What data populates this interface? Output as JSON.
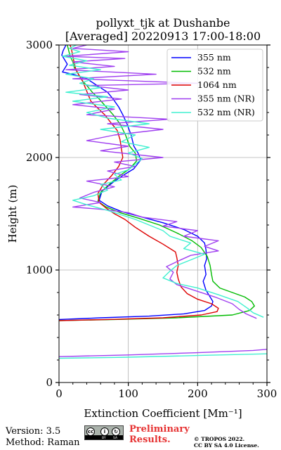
{
  "chart_data": {
    "type": "line",
    "title": "pollyxt_tjk at Dushanbe",
    "subtitle": "[Averaged] 20220913 17:00-18:00",
    "xlabel": "Extinction Coefficient [Mm⁻¹]",
    "ylabel": "Height (m)",
    "xlim": [
      0,
      300
    ],
    "ylim": [
      0,
      3000
    ],
    "xticks": [
      "0",
      "100",
      "200",
      "300"
    ],
    "yticks": [
      "0",
      "1000",
      "2000",
      "3000"
    ],
    "grid": true,
    "legend_position": "top-right",
    "series": [
      {
        "name": "355 nm",
        "color": "#0000ff",
        "points": [
          [
            0,
            560
          ],
          [
            60,
            575
          ],
          [
            130,
            590
          ],
          [
            180,
            610
          ],
          [
            210,
            640
          ],
          [
            220,
            680
          ],
          [
            222,
            720
          ],
          [
            218,
            760
          ],
          [
            212,
            820
          ],
          [
            208,
            900
          ],
          [
            212,
            960
          ],
          [
            210,
            1040
          ],
          [
            213,
            1100
          ],
          [
            212,
            1180
          ],
          [
            210,
            1240
          ],
          [
            200,
            1300
          ],
          [
            180,
            1360
          ],
          [
            150,
            1420
          ],
          [
            120,
            1470
          ],
          [
            90,
            1520
          ],
          [
            70,
            1570
          ],
          [
            58,
            1620
          ],
          [
            62,
            1700
          ],
          [
            78,
            1780
          ],
          [
            92,
            1840
          ],
          [
            108,
            1900
          ],
          [
            118,
            1980
          ],
          [
            114,
            2040
          ],
          [
            108,
            2100
          ],
          [
            104,
            2200
          ],
          [
            98,
            2300
          ],
          [
            92,
            2380
          ],
          [
            86,
            2450
          ],
          [
            78,
            2520
          ],
          [
            70,
            2580
          ],
          [
            60,
            2620
          ],
          [
            50,
            2660
          ],
          [
            40,
            2700
          ],
          [
            20,
            2740
          ],
          [
            5,
            2760
          ],
          [
            8,
            2790
          ],
          [
            12,
            2830
          ],
          [
            8,
            2870
          ],
          [
            4,
            2910
          ],
          [
            6,
            2950
          ],
          [
            10,
            3000
          ]
        ]
      },
      {
        "name": "532 nm",
        "color": "#00bb00",
        "points": [
          [
            0,
            550
          ],
          [
            80,
            560
          ],
          [
            170,
            575
          ],
          [
            250,
            600
          ],
          [
            275,
            640
          ],
          [
            282,
            680
          ],
          [
            278,
            720
          ],
          [
            268,
            760
          ],
          [
            250,
            800
          ],
          [
            232,
            840
          ],
          [
            222,
            900
          ],
          [
            220,
            960
          ],
          [
            218,
            1040
          ],
          [
            214,
            1120
          ],
          [
            205,
            1200
          ],
          [
            192,
            1260
          ],
          [
            170,
            1330
          ],
          [
            145,
            1400
          ],
          [
            115,
            1460
          ],
          [
            88,
            1510
          ],
          [
            68,
            1560
          ],
          [
            56,
            1610
          ],
          [
            60,
            1690
          ],
          [
            74,
            1770
          ],
          [
            88,
            1840
          ],
          [
            102,
            1900
          ],
          [
            112,
            1970
          ],
          [
            110,
            2040
          ],
          [
            102,
            2100
          ],
          [
            96,
            2200
          ],
          [
            88,
            2300
          ],
          [
            78,
            2380
          ],
          [
            68,
            2450
          ],
          [
            58,
            2520
          ],
          [
            48,
            2580
          ],
          [
            40,
            2640
          ],
          [
            34,
            2680
          ],
          [
            30,
            2720
          ],
          [
            26,
            2760
          ],
          [
            22,
            2800
          ],
          [
            20,
            2850
          ],
          [
            16,
            2900
          ],
          [
            14,
            2950
          ],
          [
            12,
            3000
          ]
        ]
      },
      {
        "name": "1064 nm",
        "color": "#dd0000",
        "points": [
          [
            0,
            550
          ],
          [
            70,
            560
          ],
          [
            150,
            575
          ],
          [
            205,
            600
          ],
          [
            228,
            630
          ],
          [
            230,
            660
          ],
          [
            220,
            700
          ],
          [
            200,
            740
          ],
          [
            185,
            790
          ],
          [
            176,
            850
          ],
          [
            172,
            920
          ],
          [
            170,
            980
          ],
          [
            172,
            1040
          ],
          [
            170,
            1110
          ],
          [
            168,
            1160
          ],
          [
            150,
            1230
          ],
          [
            130,
            1300
          ],
          [
            110,
            1380
          ],
          [
            95,
            1450
          ],
          [
            80,
            1500
          ],
          [
            68,
            1550
          ],
          [
            58,
            1600
          ],
          [
            56,
            1680
          ],
          [
            64,
            1760
          ],
          [
            76,
            1840
          ],
          [
            86,
            1920
          ],
          [
            92,
            2000
          ],
          [
            90,
            2080
          ],
          [
            88,
            2160
          ],
          [
            84,
            2240
          ],
          [
            76,
            2300
          ],
          [
            66,
            2380
          ],
          [
            54,
            2450
          ],
          [
            46,
            2500
          ],
          [
            42,
            2560
          ],
          [
            38,
            2620
          ],
          [
            34,
            2680
          ],
          [
            28,
            2740
          ],
          [
            24,
            2790
          ],
          [
            22,
            2840
          ],
          [
            20,
            2900
          ],
          [
            18,
            2960
          ],
          [
            16,
            3000
          ]
        ]
      },
      {
        "name": "355 nm (NR)",
        "color": "#a040f0",
        "points": [
          [
            0,
            230
          ],
          [
            100,
            245
          ],
          [
            200,
            265
          ],
          [
            280,
            285
          ],
          [
            300,
            295
          ],
          [
            null,
            null
          ],
          [
            285,
            570
          ],
          [
            270,
            610
          ],
          [
            260,
            650
          ],
          [
            250,
            700
          ],
          [
            225,
            760
          ],
          [
            195,
            820
          ],
          [
            170,
            870
          ],
          [
            160,
            920
          ],
          [
            165,
            980
          ],
          [
            155,
            1030
          ],
          [
            172,
            1080
          ],
          [
            190,
            1130
          ],
          [
            230,
            1170
          ],
          [
            210,
            1210
          ],
          [
            230,
            1260
          ],
          [
            180,
            1300
          ],
          [
            200,
            1350
          ],
          [
            150,
            1390
          ],
          [
            170,
            1430
          ],
          [
            120,
            1470
          ],
          [
            100,
            1510
          ],
          [
            60,
            1540
          ],
          [
            20,
            1560
          ],
          [
            60,
            1600
          ],
          [
            30,
            1640
          ],
          [
            50,
            1690
          ],
          [
            80,
            1740
          ],
          [
            40,
            1790
          ],
          [
            100,
            1830
          ],
          [
            70,
            1880
          ],
          [
            110,
            1920
          ],
          [
            80,
            1960
          ],
          [
            150,
            2000
          ],
          [
            60,
            2060
          ],
          [
            100,
            2100
          ],
          [
            40,
            2150
          ],
          [
            80,
            2200
          ],
          [
            150,
            2250
          ],
          [
            70,
            2300
          ],
          [
            160,
            2340
          ],
          [
            40,
            2380
          ],
          [
            80,
            2430
          ],
          [
            20,
            2470
          ],
          [
            90,
            2520
          ],
          [
            30,
            2560
          ],
          [
            100,
            2600
          ],
          [
            40,
            2640
          ],
          [
            200,
            2660
          ],
          [
            20,
            2700
          ],
          [
            140,
            2740
          ],
          [
            10,
            2780
          ],
          [
            80,
            2810
          ],
          [
            20,
            2850
          ],
          [
            95,
            2880
          ],
          [
            10,
            2900
          ],
          [
            100,
            2940
          ],
          [
            20,
            2970
          ],
          [
            40,
            3000
          ]
        ]
      },
      {
        "name": "532 nm (NR)",
        "color": "#40f0d0",
        "points": [
          [
            0,
            215
          ],
          [
            100,
            225
          ],
          [
            200,
            240
          ],
          [
            300,
            255
          ],
          [
            null,
            null
          ],
          [
            295,
            580
          ],
          [
            280,
            620
          ],
          [
            272,
            660
          ],
          [
            258,
            720
          ],
          [
            230,
            780
          ],
          [
            200,
            840
          ],
          [
            170,
            880
          ],
          [
            150,
            930
          ],
          [
            160,
            990
          ],
          [
            170,
            1040
          ],
          [
            190,
            1090
          ],
          [
            210,
            1140
          ],
          [
            180,
            1190
          ],
          [
            190,
            1240
          ],
          [
            160,
            1300
          ],
          [
            150,
            1350
          ],
          [
            130,
            1400
          ],
          [
            110,
            1450
          ],
          [
            90,
            1490
          ],
          [
            70,
            1530
          ],
          [
            40,
            1580
          ],
          [
            20,
            1620
          ],
          [
            50,
            1660
          ],
          [
            70,
            1710
          ],
          [
            60,
            1760
          ],
          [
            90,
            1800
          ],
          [
            80,
            1850
          ],
          [
            100,
            1890
          ],
          [
            110,
            1940
          ],
          [
            120,
            1990
          ],
          [
            100,
            2040
          ],
          [
            130,
            2090
          ],
          [
            90,
            2140
          ],
          [
            110,
            2200
          ],
          [
            60,
            2250
          ],
          [
            130,
            2300
          ],
          [
            70,
            2350
          ],
          [
            40,
            2400
          ],
          [
            80,
            2450
          ],
          [
            20,
            2500
          ],
          [
            70,
            2540
          ],
          [
            10,
            2580
          ],
          [
            60,
            2620
          ],
          [
            30,
            2660
          ],
          [
            50,
            2700
          ],
          [
            10,
            2740
          ],
          [
            60,
            2780
          ],
          [
            15,
            2820
          ],
          [
            40,
            2860
          ],
          [
            5,
            2900
          ],
          [
            30,
            2940
          ],
          [
            15,
            2970
          ],
          [
            25,
            3000
          ]
        ]
      }
    ]
  },
  "footer": {
    "version": "Version: 3.5",
    "method": "Method: Raman",
    "preliminary_line1": "Preliminary",
    "preliminary_line2": "Results.",
    "copyright_line1": "© TROPOS 2022.",
    "copyright_line2": "CC BY SA 4.0 License.",
    "cc_badge_labels": [
      "cc",
      "BY",
      "SA"
    ]
  }
}
